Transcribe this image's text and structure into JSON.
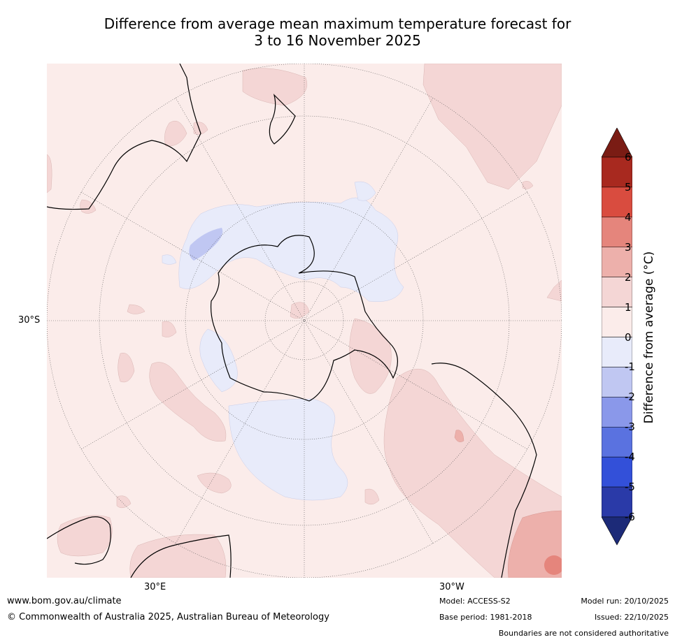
{
  "title": {
    "line1": "Difference from average mean maximum temperature forecast for",
    "line2": "3 to 16 November 2025"
  },
  "map": {
    "projection": "south-polar-stereographic",
    "lat_label": "30°S",
    "lon_labels": [
      "30°E",
      "30°W"
    ],
    "background_anomaly_class": "0 to 1"
  },
  "colorbar": {
    "label": "Difference from average (°C)",
    "ticks": [
      "6",
      "5",
      "4",
      "3",
      "2",
      "1",
      "0",
      "-1",
      "-2",
      "-3",
      "-4",
      "-5",
      "-6"
    ],
    "colors": {
      "above_6": "#7a1c14",
      "5_to_6": "#a8291f",
      "4_to_5": "#d94c3f",
      "3_to_4": "#e5857c",
      "2_to_3": "#edb0ab",
      "1_to_2": "#f4d6d5",
      "0_to_1": "#fbecea",
      "-1_to_0": "#e8ebfa",
      "-2_to_-1": "#c0c7f2",
      "-3_to_-2": "#8a98ea",
      "-4_to_-3": "#5a72e0",
      "-5_to_-4": "#3350d9",
      "-6_to_-5": "#2a3aa8",
      "below_-6": "#1c2a78"
    }
  },
  "footer": {
    "website": "www.bom.gov.au/climate",
    "copyright": "© Commonwealth of Australia 2025, Australian Bureau of Meteorology",
    "model": "Model: ACCESS-S2",
    "base_period": "Base period: 1981-2018",
    "model_run": "Model run: 20/10/2025",
    "issued": "Issued: 22/10/2025",
    "disclaimer": "Boundaries are not considered authoritative"
  }
}
